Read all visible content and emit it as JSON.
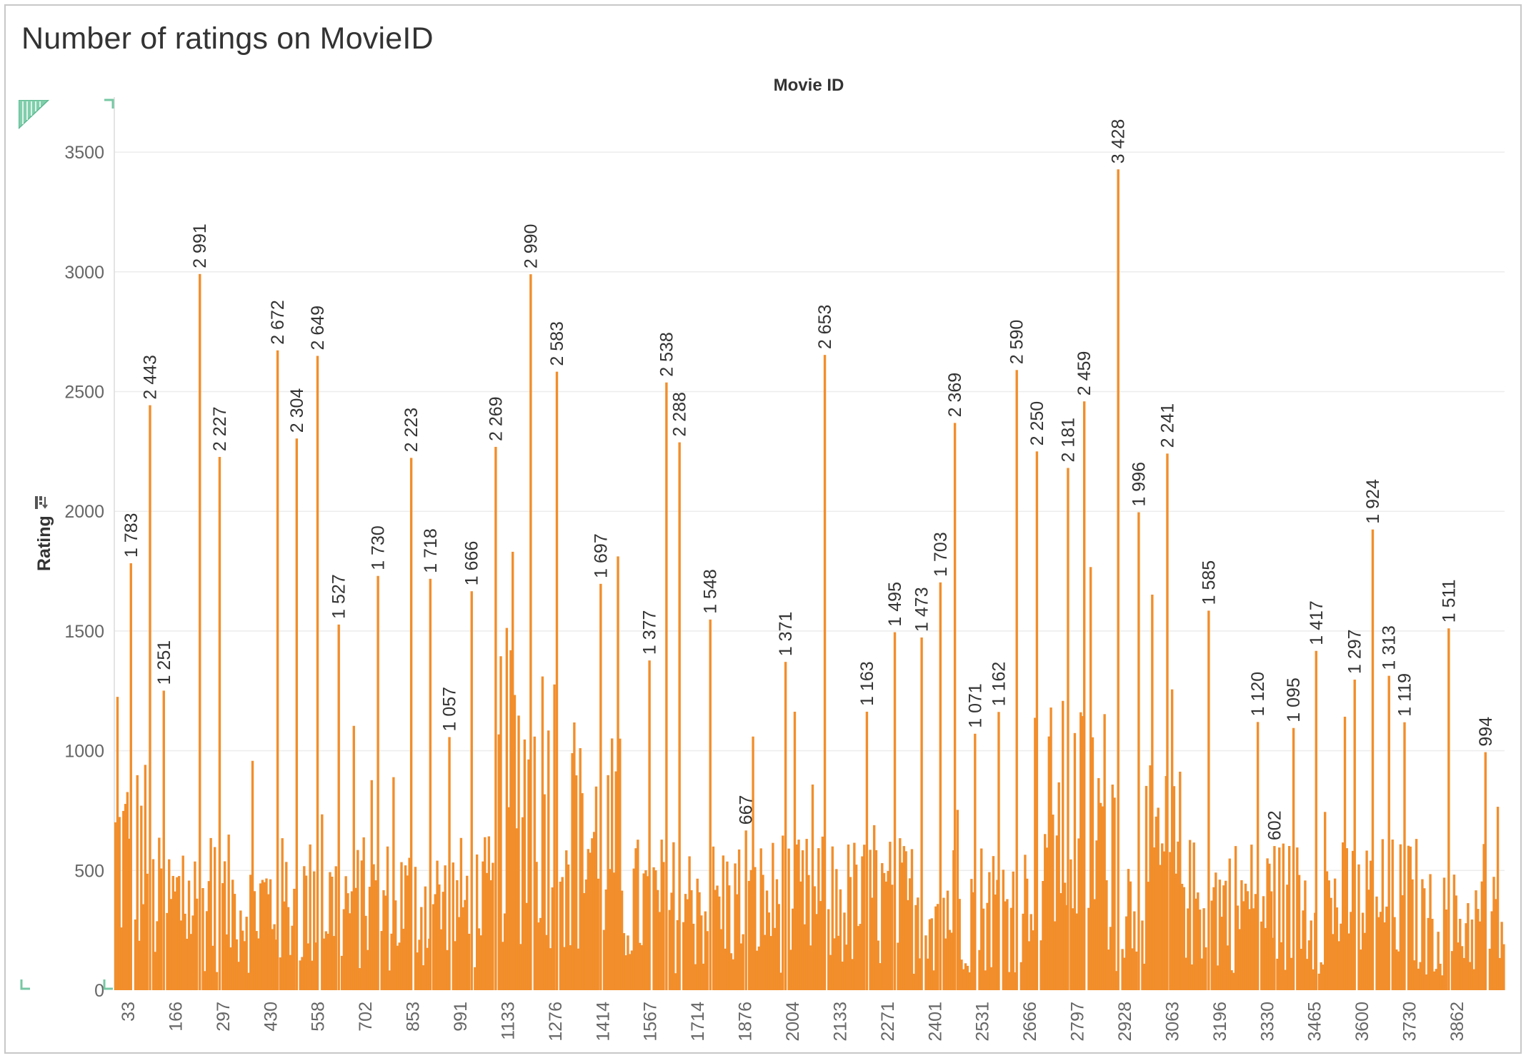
{
  "title": "Number of ratings on MovieID",
  "column_header": "Movie ID",
  "y_axis_title": "Rating",
  "colors": {
    "bar": "#F28E2B",
    "grid": "#ececec",
    "axis_text": "#666666",
    "label_text": "#333333",
    "accent": "#76c7a3"
  },
  "chart_data": {
    "type": "bar",
    "title": "Number of ratings on MovieID",
    "xlabel": "Movie ID",
    "ylabel": "Rating",
    "ylim": [
      0,
      3700
    ],
    "y_ticks": [
      0,
      500,
      1000,
      1500,
      2000,
      2500,
      3000,
      3500
    ],
    "x_tick_labels": [
      "33",
      "166",
      "297",
      "430",
      "558",
      "702",
      "853",
      "991",
      "1133",
      "1276",
      "1414",
      "1567",
      "1714",
      "1876",
      "2004",
      "2133",
      "2271",
      "2401",
      "2531",
      "2666",
      "2797",
      "2928",
      "3063",
      "3196",
      "3330",
      "3465",
      "3600",
      "3730",
      "3862"
    ],
    "x_range": [
      19,
      3952
    ],
    "grid": true,
    "legend": "none",
    "labeled_bars": [
      {
        "movie_id": 65,
        "value": 1783,
        "label": "1 783"
      },
      {
        "movie_id": 119,
        "value": 2443,
        "label": "2 443"
      },
      {
        "movie_id": 158,
        "value": 1251,
        "label": "1 251"
      },
      {
        "movie_id": 260,
        "value": 2991,
        "label": "2 991"
      },
      {
        "movie_id": 316,
        "value": 2227,
        "label": "2 227"
      },
      {
        "movie_id": 480,
        "value": 2672,
        "label": "2 672"
      },
      {
        "movie_id": 534,
        "value": 2304,
        "label": "2 304"
      },
      {
        "movie_id": 593,
        "value": 2649,
        "label": "2 649"
      },
      {
        "movie_id": 653,
        "value": 1527,
        "label": "1 527"
      },
      {
        "movie_id": 764,
        "value": 1730,
        "label": "1 730"
      },
      {
        "movie_id": 858,
        "value": 2223,
        "label": "2 223"
      },
      {
        "movie_id": 912,
        "value": 1718,
        "label": "1 718"
      },
      {
        "movie_id": 966,
        "value": 1057,
        "label": "1 057"
      },
      {
        "movie_id": 1029,
        "value": 1666,
        "label": "1 666"
      },
      {
        "movie_id": 1097,
        "value": 2269,
        "label": "2 269"
      },
      {
        "movie_id": 1196,
        "value": 2990,
        "label": "2 990"
      },
      {
        "movie_id": 1270,
        "value": 2583,
        "label": "2 583"
      },
      {
        "movie_id": 1394,
        "value": 1697,
        "label": "1 697"
      },
      {
        "movie_id": 1532,
        "value": 1377,
        "label": "1 377"
      },
      {
        "movie_id": 1580,
        "value": 2538,
        "label": "2 538"
      },
      {
        "movie_id": 1617,
        "value": 2288,
        "label": "2 288"
      },
      {
        "movie_id": 1704,
        "value": 1548,
        "label": "1 548"
      },
      {
        "movie_id": 1805,
        "value": 667,
        "label": "667"
      },
      {
        "movie_id": 1917,
        "value": 1371,
        "label": "1 371"
      },
      {
        "movie_id": 2028,
        "value": 2653,
        "label": "2 653"
      },
      {
        "movie_id": 2147,
        "value": 1163,
        "label": "1 163"
      },
      {
        "movie_id": 2226,
        "value": 1495,
        "label": "1 495"
      },
      {
        "movie_id": 2302,
        "value": 1473,
        "label": "1 473"
      },
      {
        "movie_id": 2355,
        "value": 1703,
        "label": "1 703"
      },
      {
        "movie_id": 2396,
        "value": 2369,
        "label": "2 369"
      },
      {
        "movie_id": 2453,
        "value": 1071,
        "label": "1 071"
      },
      {
        "movie_id": 2520,
        "value": 1162,
        "label": "1 162"
      },
      {
        "movie_id": 2571,
        "value": 2590,
        "label": "2 590"
      },
      {
        "movie_id": 2628,
        "value": 2250,
        "label": "2 250"
      },
      {
        "movie_id": 2716,
        "value": 2181,
        "label": "2 181"
      },
      {
        "movie_id": 2762,
        "value": 2459,
        "label": "2 459"
      },
      {
        "movie_id": 2858,
        "value": 3428,
        "label": "3 428"
      },
      {
        "movie_id": 2916,
        "value": 1996,
        "label": "1 996"
      },
      {
        "movie_id": 2997,
        "value": 2241,
        "label": "2 241"
      },
      {
        "movie_id": 3114,
        "value": 1585,
        "label": "1 585"
      },
      {
        "movie_id": 3253,
        "value": 1120,
        "label": "1 120"
      },
      {
        "movie_id": 3300,
        "value": 602,
        "label": "602"
      },
      {
        "movie_id": 3354,
        "value": 1095,
        "label": "1 095"
      },
      {
        "movie_id": 3418,
        "value": 1417,
        "label": "1 417"
      },
      {
        "movie_id": 3527,
        "value": 1297,
        "label": "1 297"
      },
      {
        "movie_id": 3578,
        "value": 1924,
        "label": "1 924"
      },
      {
        "movie_id": 3624,
        "value": 1313,
        "label": "1 313"
      },
      {
        "movie_id": 3668,
        "value": 1119,
        "label": "1 119"
      },
      {
        "movie_id": 3793,
        "value": 1511,
        "label": "1 511"
      },
      {
        "movie_id": 3897,
        "value": 994,
        "label": "994"
      }
    ]
  }
}
